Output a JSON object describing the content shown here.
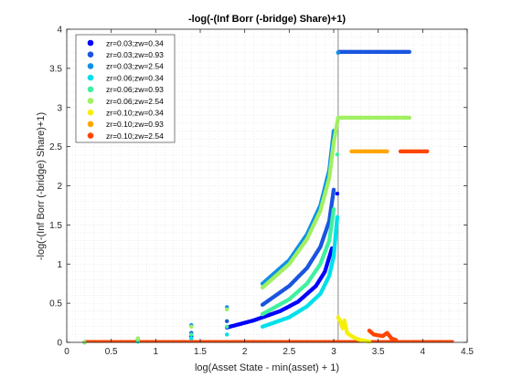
{
  "chart_data": {
    "type": "scatter",
    "title": "-log(-(Inf Borr (-bridge) Share)+1)",
    "xlabel": "log(Asset State - min(asset) + 1)",
    "ylabel": "-log(-(Inf Borr (-bridge) Share)+1)",
    "xlim": [
      0,
      4.5
    ],
    "ylim": [
      0,
      4
    ],
    "xticks": [
      "0",
      "0.5",
      "1",
      "1.5",
      "2",
      "2.5",
      "3",
      "3.5",
      "4",
      "4.5"
    ],
    "yticks": [
      "0",
      "0.5",
      "1",
      "1.5",
      "2",
      "2.5",
      "3",
      "3.5",
      "4"
    ],
    "grid": "minor dotted",
    "legend_position": "top-left",
    "vertical_line_x": 3.05,
    "series": [
      {
        "name": "zr=0.03;zw=0.34",
        "color": "#0000ff",
        "x": [
          0.2,
          0.8,
          1.4,
          1.8,
          2.1,
          2.4,
          2.6,
          2.8,
          2.9,
          2.98,
          3.04
        ],
        "y": [
          0.0,
          0.02,
          0.08,
          0.19,
          0.28,
          0.4,
          0.52,
          0.72,
          0.9,
          1.2,
          1.9
        ]
      },
      {
        "name": "zr=0.03;zw=0.93",
        "color": "#1a55e0",
        "x": [
          0.2,
          0.8,
          1.4,
          1.8,
          2.2,
          2.5,
          2.7,
          2.85,
          2.95,
          3.0,
          3.05,
          3.06,
          3.3,
          3.6,
          3.85
        ],
        "y": [
          0.0,
          0.03,
          0.12,
          0.27,
          0.48,
          0.72,
          0.95,
          1.22,
          1.55,
          1.95,
          3.7,
          3.71,
          3.71,
          3.71,
          3.71
        ]
      },
      {
        "name": "zr=0.03;zw=2.54",
        "color": "#1090e8",
        "x": [
          0.2,
          0.8,
          1.4,
          1.8,
          2.2,
          2.5,
          2.7,
          2.85,
          2.95,
          3.0,
          3.05
        ],
        "y": [
          0.0,
          0.05,
          0.22,
          0.45,
          0.75,
          1.05,
          1.38,
          1.75,
          2.2,
          2.7,
          3.7
        ]
      },
      {
        "name": "zr=0.06;zw=0.34",
        "color": "#00e0ea",
        "x": [
          0.2,
          0.8,
          1.4,
          1.8,
          2.2,
          2.5,
          2.7,
          2.85,
          2.95,
          3.0,
          3.04
        ],
        "y": [
          0.0,
          0.01,
          0.05,
          0.1,
          0.2,
          0.32,
          0.46,
          0.62,
          0.85,
          1.1,
          1.6
        ]
      },
      {
        "name": "zr=0.06;zw=0.93",
        "color": "#3ef0a0",
        "x": [
          0.2,
          0.8,
          1.4,
          1.8,
          2.2,
          2.5,
          2.7,
          2.85,
          2.95,
          3.0,
          3.04
        ],
        "y": [
          0.0,
          0.02,
          0.1,
          0.2,
          0.36,
          0.55,
          0.75,
          1.0,
          1.3,
          1.7,
          2.4
        ]
      },
      {
        "name": "zr=0.06;zw=2.54",
        "color": "#a0f060",
        "x": [
          0.2,
          0.8,
          1.4,
          1.8,
          2.2,
          2.5,
          2.7,
          2.85,
          2.95,
          3.0,
          3.05,
          3.06,
          3.3,
          3.6,
          3.85
        ],
        "y": [
          0.0,
          0.05,
          0.2,
          0.42,
          0.7,
          1.0,
          1.32,
          1.68,
          2.1,
          2.55,
          2.87,
          2.87,
          2.87,
          2.87,
          2.87
        ]
      },
      {
        "name": "zr=0.10;zw=0.34",
        "color": "#f5f00a",
        "x": [
          3.05,
          3.08,
          3.1,
          3.12,
          3.15,
          3.2,
          3.25,
          3.3,
          3.35,
          3.4
        ],
        "y": [
          0.32,
          0.25,
          0.18,
          0.28,
          0.12,
          0.08,
          0.05,
          0.03,
          0.02,
          0.01
        ]
      },
      {
        "name": "zr=0.10;zw=0.93",
        "color": "#ffa500",
        "x": [
          3.2,
          3.25,
          3.3,
          3.4,
          3.45,
          3.5,
          3.55,
          3.6
        ],
        "y": [
          2.44,
          2.44,
          2.44,
          2.44,
          2.44,
          2.44,
          2.44,
          2.44
        ]
      },
      {
        "name": "zr=0.10;zw=2.54",
        "color": "#ff4500",
        "x": [
          3.75,
          3.85,
          3.95,
          4.05,
          3.4,
          3.45,
          3.55,
          3.6,
          3.65,
          3.7
        ],
        "y": [
          2.44,
          2.44,
          2.44,
          2.44,
          0.15,
          0.1,
          0.08,
          0.12,
          0.05,
          0.03
        ]
      }
    ],
    "baseline": {
      "color": "#ff4500",
      "xmin": 0.2,
      "xmax": 4.35,
      "y": 0.0
    }
  }
}
